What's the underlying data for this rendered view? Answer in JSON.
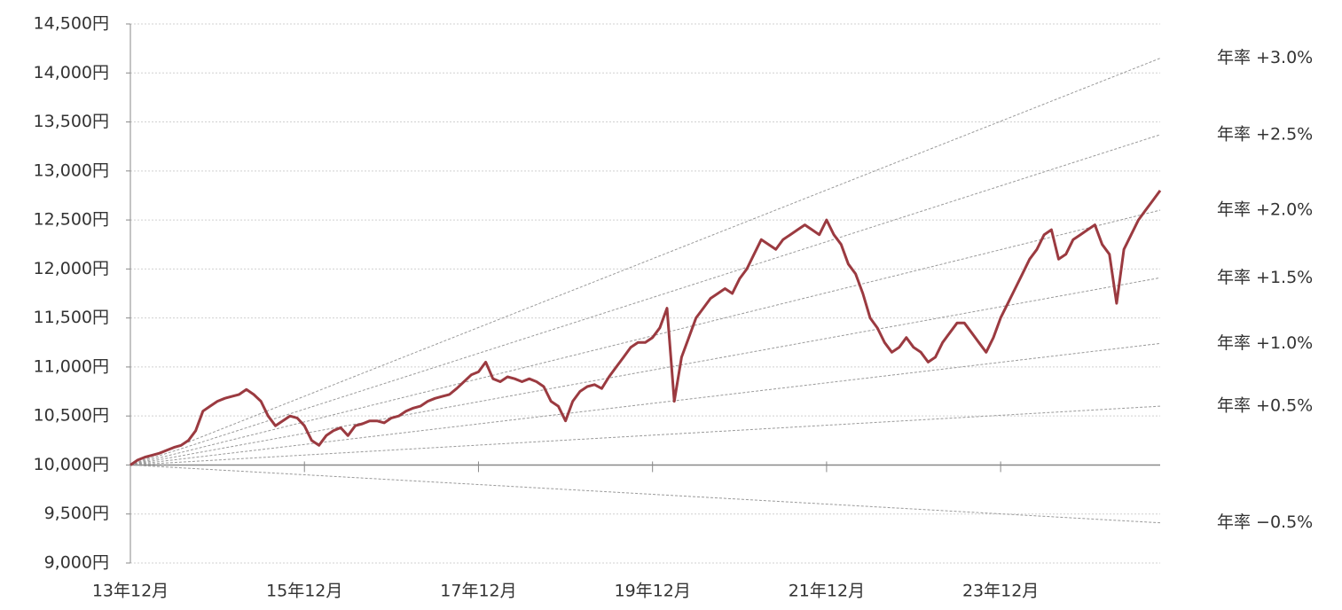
{
  "chart_data": {
    "type": "line",
    "x": [
      "2013-12",
      "2014-01",
      "2014-02",
      "2014-03",
      "2014-04",
      "2014-05",
      "2014-06",
      "2014-07",
      "2014-08",
      "2014-09",
      "2014-10",
      "2014-11",
      "2014-12",
      "2015-01",
      "2015-02",
      "2015-03",
      "2015-04",
      "2015-05",
      "2015-06",
      "2015-07",
      "2015-08",
      "2015-09",
      "2015-10",
      "2015-11",
      "2015-12",
      "2016-01",
      "2016-02",
      "2016-03",
      "2016-04",
      "2016-05",
      "2016-06",
      "2016-07",
      "2016-08",
      "2016-09",
      "2016-10",
      "2016-11",
      "2016-12",
      "2017-01",
      "2017-02",
      "2017-03",
      "2017-04",
      "2017-05",
      "2017-06",
      "2017-07",
      "2017-08",
      "2017-09",
      "2017-10",
      "2017-11",
      "2017-12",
      "2018-01",
      "2018-02",
      "2018-03",
      "2018-04",
      "2018-05",
      "2018-06",
      "2018-07",
      "2018-08",
      "2018-09",
      "2018-10",
      "2018-11",
      "2018-12",
      "2019-01",
      "2019-02",
      "2019-03",
      "2019-04",
      "2019-05",
      "2019-06",
      "2019-07",
      "2019-08",
      "2019-09",
      "2019-10",
      "2019-11",
      "2019-12",
      "2020-01",
      "2020-02",
      "2020-03",
      "2020-04",
      "2020-05",
      "2020-06",
      "2020-07",
      "2020-08",
      "2020-09",
      "2020-10",
      "2020-11",
      "2020-12",
      "2021-01",
      "2021-02",
      "2021-03",
      "2021-04",
      "2021-05",
      "2021-06",
      "2021-07",
      "2021-08",
      "2021-09",
      "2021-10",
      "2021-11",
      "2021-12",
      "2022-01",
      "2022-02",
      "2022-03",
      "2022-04",
      "2022-05",
      "2022-06",
      "2022-07",
      "2022-08",
      "2022-09",
      "2022-10",
      "2022-11",
      "2022-12",
      "2023-01",
      "2023-02",
      "2023-03",
      "2023-04",
      "2023-05",
      "2023-06",
      "2023-07",
      "2023-08",
      "2023-09",
      "2023-10",
      "2023-11",
      "2023-12",
      "2024-01",
      "2024-02",
      "2024-03",
      "2024-04",
      "2024-05",
      "2024-06",
      "2024-07",
      "2024-08",
      "2024-09",
      "2024-10",
      "2024-11",
      "2024-12",
      "2025-01",
      "2025-02",
      "2025-03",
      "2025-04",
      "2025-05",
      "2025-06",
      "2025-07",
      "2025-08",
      "2025-09",
      "2025-10"
    ],
    "values": [
      10000,
      10050,
      10080,
      10100,
      10120,
      10150,
      10180,
      10200,
      10250,
      10350,
      10550,
      10600,
      10650,
      10680,
      10700,
      10720,
      10770,
      10720,
      10650,
      10500,
      10400,
      10450,
      10500,
      10480,
      10400,
      10250,
      10200,
      10300,
      10350,
      10380,
      10300,
      10400,
      10420,
      10450,
      10450,
      10430,
      10480,
      10500,
      10550,
      10580,
      10600,
      10650,
      10680,
      10700,
      10720,
      10780,
      10850,
      10920,
      10950,
      11050,
      10880,
      10850,
      10900,
      10880,
      10850,
      10880,
      10850,
      10800,
      10650,
      10600,
      10450,
      10650,
      10750,
      10800,
      10820,
      10780,
      10900,
      11000,
      11100,
      11200,
      11250,
      11250,
      11300,
      11400,
      11600,
      10650,
      11100,
      11300,
      11500,
      11600,
      11700,
      11750,
      11800,
      11750,
      11900,
      12000,
      12150,
      12300,
      12250,
      12200,
      12300,
      12350,
      12400,
      12450,
      12400,
      12350,
      12500,
      12350,
      12250,
      12050,
      11950,
      11750,
      11500,
      11400,
      11250,
      11150,
      11200,
      11300,
      11200,
      11150,
      11050,
      11100,
      11250,
      11350,
      11450,
      11450,
      11350,
      11250,
      11150,
      11300,
      11500,
      11650,
      11800,
      11950,
      12100,
      12200,
      12350,
      12400,
      12100,
      12150,
      12300,
      12350,
      12400,
      12450,
      12250,
      12150,
      11650,
      12200,
      12350,
      12500,
      12600,
      12700,
      12800
    ],
    "color": "#9b3a40",
    "reference_lines": [
      {
        "label": "年率 +3.0%",
        "values": [
          10000,
          14150
        ]
      },
      {
        "label": "年率 +2.5%",
        "values": [
          10000,
          13370
        ]
      },
      {
        "label": "年率 +2.0%",
        "values": [
          10000,
          12600
        ]
      },
      {
        "label": "年率 +1.5%",
        "values": [
          10000,
          11910
        ]
      },
      {
        "label": "年率 +1.0%",
        "values": [
          10000,
          11240
        ]
      },
      {
        "label": "年率 +0.5%",
        "values": [
          10000,
          10600
        ]
      },
      {
        "label": "年率 −0.5%",
        "values": [
          10000,
          9410
        ]
      }
    ],
    "reference_color": "#9a9a9a",
    "xlim": [
      "2013-12",
      "2025-10"
    ],
    "xticks": [
      {
        "value": "2013-12",
        "label": "13年12月"
      },
      {
        "value": "2015-12",
        "label": "15年12月"
      },
      {
        "value": "2017-12",
        "label": "17年12月"
      },
      {
        "value": "2019-12",
        "label": "19年12月"
      },
      {
        "value": "2021-12",
        "label": "21年12月"
      },
      {
        "value": "2023-12",
        "label": "23年12月"
      }
    ],
    "ylim": [
      9000,
      14500
    ],
    "yticks": [
      {
        "value": 9000,
        "label": "9,000円"
      },
      {
        "value": 9500,
        "label": "9,500円"
      },
      {
        "value": 10000,
        "label": "10,000円"
      },
      {
        "value": 10500,
        "label": "10,500円"
      },
      {
        "value": 11000,
        "label": "11,000円"
      },
      {
        "value": 11500,
        "label": "11,500円"
      },
      {
        "value": 12000,
        "label": "12,000円"
      },
      {
        "value": 12500,
        "label": "12,500円"
      },
      {
        "value": 13000,
        "label": "13,000円"
      },
      {
        "value": 13500,
        "label": "13,500円"
      },
      {
        "value": 14000,
        "label": "14,000円"
      },
      {
        "value": 14500,
        "label": "14,500円"
      }
    ],
    "x_axis_at": 10000,
    "grid": true
  }
}
